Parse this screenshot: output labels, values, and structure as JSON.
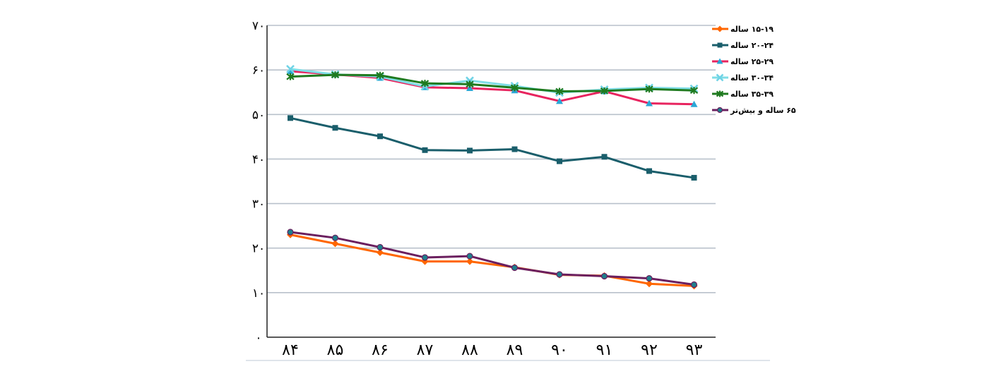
{
  "chart_data": {
    "type": "line",
    "title": "",
    "xlabel": "",
    "ylabel": "",
    "categories": [
      "۸۴",
      "۸۵",
      "۸۶",
      "۸۷",
      "۸۸",
      "۸۹",
      "۹۰",
      "۹۱",
      "۹۲",
      "۹۳"
    ],
    "y_ticks": [
      "۰",
      "۱۰",
      "۲۰",
      "۳۰",
      "۴۰",
      "۵۰",
      "۶۰",
      "۷۰"
    ],
    "ylim": [
      0,
      70
    ],
    "grid": true,
    "legend_position": "right",
    "series": [
      {
        "name": "۱۵-۱۹ ساله",
        "color": "#ff6600",
        "marker": "diamond",
        "values": [
          23,
          21,
          19,
          17,
          17,
          15.7,
          14,
          13.8,
          12,
          11.5
        ]
      },
      {
        "name": "۲۰-۲۴ ساله",
        "color": "#1a5e6b",
        "marker": "square",
        "values": [
          49.2,
          47,
          45.1,
          42,
          41.9,
          42.2,
          39.5,
          40.5,
          37.3,
          35.8
        ]
      },
      {
        "name": "۲۵-۲۹ ساله",
        "color": "#e8245f",
        "marker": "triangle",
        "values": [
          59.7,
          59,
          58.2,
          56.1,
          55.9,
          55.4,
          53,
          55.2,
          52.5,
          52.3
        ]
      },
      {
        "name": "۳۰-۳۴ ساله",
        "color": "#7fdde6",
        "marker": "x",
        "values": [
          60.2,
          59,
          58.5,
          56.3,
          57.6,
          56.4,
          54.9,
          55.6,
          56,
          55.8
        ]
      },
      {
        "name": "۳۵-۳۹ ساله",
        "color": "#1f7a1f",
        "marker": "star",
        "values": [
          58.5,
          58.9,
          58.8,
          57,
          56.8,
          56,
          55.2,
          55.3,
          55.7,
          55.4
        ]
      },
      {
        "name": "۶۵ ساله و بیش‌تر",
        "color": "#6b1f5f",
        "marker": "circle",
        "values": [
          23.6,
          22.3,
          20.2,
          17.9,
          18.2,
          15.6,
          14.1,
          13.7,
          13.2,
          11.8
        ]
      }
    ]
  }
}
